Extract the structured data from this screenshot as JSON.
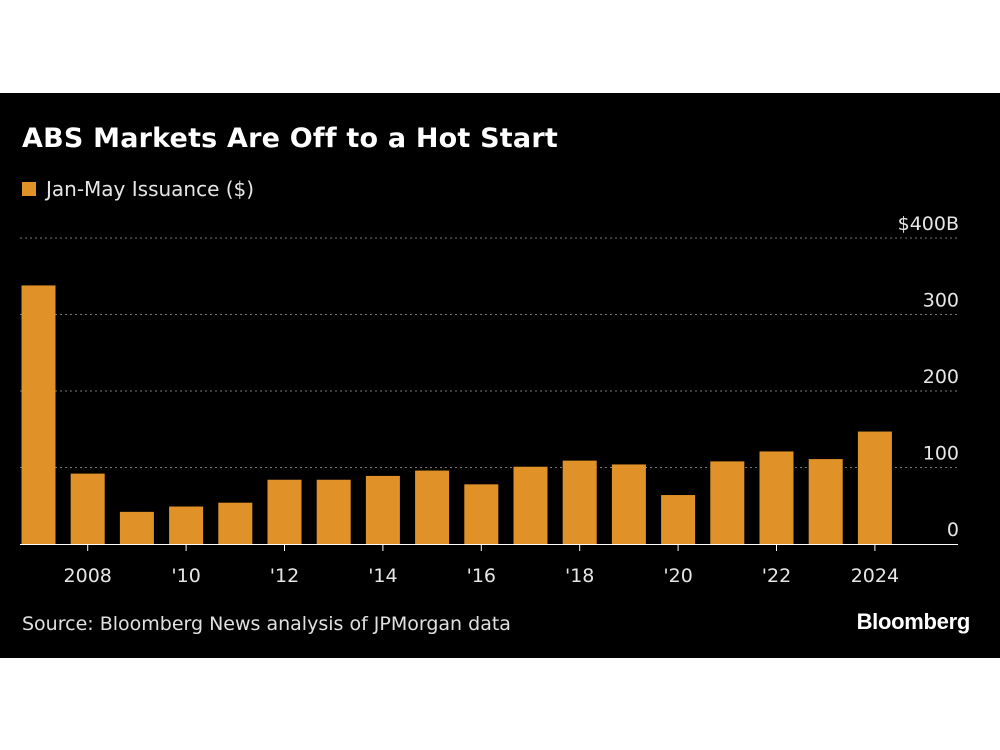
{
  "chart_data": {
    "type": "bar",
    "title": "ABS Markets Are Off to a Hot Start",
    "legend": [
      "Jan-May Issuance ($)"
    ],
    "categories": [
      "2007",
      "2008",
      "2009",
      "2010",
      "2011",
      "2012",
      "2013",
      "2014",
      "2015",
      "2016",
      "2017",
      "2018",
      "2019",
      "2020",
      "2021",
      "2022",
      "2023",
      "2024"
    ],
    "series": [
      {
        "name": "Jan-May Issuance ($)",
        "values": [
          338,
          92,
          42,
          49,
          54,
          84,
          84,
          89,
          96,
          78,
          101,
          109,
          104,
          64,
          108,
          121,
          111,
          147
        ],
        "color": "#e09128"
      }
    ],
    "y_ticks": [
      {
        "value": 0,
        "label": "0"
      },
      {
        "value": 100,
        "label": "100"
      },
      {
        "value": 200,
        "label": "200"
      },
      {
        "value": 300,
        "label": "300"
      },
      {
        "value": 400,
        "label": "$400B"
      }
    ],
    "x_tick_labels": [
      {
        "category": "2008",
        "label": "2008"
      },
      {
        "category": "2010",
        "label": "'10"
      },
      {
        "category": "2012",
        "label": "'12"
      },
      {
        "category": "2014",
        "label": "'14"
      },
      {
        "category": "2016",
        "label": "'16"
      },
      {
        "category": "2018",
        "label": "'18"
      },
      {
        "category": "2020",
        "label": "'20"
      },
      {
        "category": "2022",
        "label": "'22"
      },
      {
        "category": "2024",
        "label": "2024"
      }
    ],
    "ylim": [
      0,
      400
    ],
    "xlabel": "",
    "ylabel": "",
    "grid": true,
    "legend_position": "top-left",
    "y_axis_position": "right"
  },
  "source": "Source: Bloomberg News analysis of JPMorgan data",
  "brand": "Bloomberg",
  "colors": {
    "background": "#000000",
    "bar": "#e09128",
    "text": "#ffffff",
    "grid": "#777777"
  }
}
